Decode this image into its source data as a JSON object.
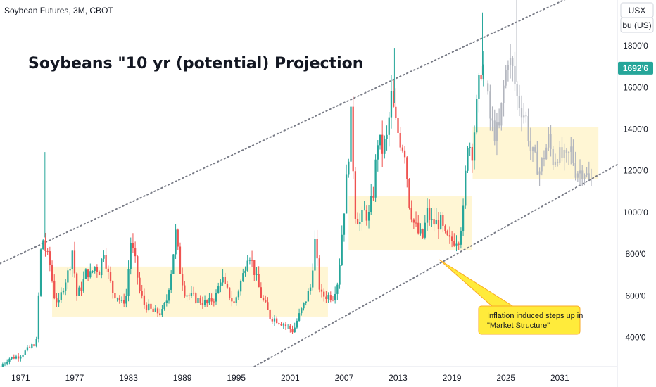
{
  "header": {
    "symbol": "Soybean Futures, 3M, CBOT"
  },
  "price_axis": {
    "currency": "USX",
    "unit": "bu (US)",
    "current_price_label": "1692'6"
  },
  "colors": {
    "up": "#26a69a",
    "down": "#ef5350",
    "projection": "#b2b5be",
    "zone": "#fff5cc",
    "callout_bg": "#ffeb3b",
    "callout_border": "#f9a825",
    "channel": "#787b86",
    "price_tag": "#26a69a"
  },
  "annotation": {
    "text_line1": "Inflation induced steps up in",
    "text_line2": "\"Market Structure\""
  },
  "chart_data": {
    "type": "candlestick",
    "title": "Soybeans \"10 yr (potential) Projection",
    "x_ticks": [
      "1971",
      "1977",
      "1983",
      "1989",
      "1995",
      "2001",
      "2007",
      "2013",
      "2019",
      "2025",
      "2031"
    ],
    "y_ticks": [
      "400'0",
      "600'0",
      "800'0",
      "1000'0",
      "1200'0",
      "1400'0",
      "1600'0",
      "1800'0"
    ],
    "ylim": [
      260,
      2020
    ],
    "xlim": [
      1968.7,
      2037.4
    ],
    "last_price": 1692.75,
    "anchors": [
      [
        1969.0,
        260
      ],
      [
        1970.0,
        300
      ],
      [
        1971.0,
        310
      ],
      [
        1972.0,
        340
      ],
      [
        1973.0,
        380
      ],
      [
        1973.6,
        900
      ],
      [
        1974.0,
        820
      ],
      [
        1974.5,
        750
      ],
      [
        1975.0,
        600
      ],
      [
        1975.5,
        560
      ],
      [
        1976.0,
        650
      ],
      [
        1976.6,
        720
      ],
      [
        1977.0,
        820
      ],
      [
        1977.5,
        600
      ],
      [
        1978.0,
        640
      ],
      [
        1978.6,
        720
      ],
      [
        1979.0,
        700
      ],
      [
        1979.5,
        740
      ],
      [
        1980.0,
        720
      ],
      [
        1980.5,
        820
      ],
      [
        1981.0,
        700
      ],
      [
        1981.5,
        620
      ],
      [
        1982.0,
        600
      ],
      [
        1982.5,
        560
      ],
      [
        1983.0,
        600
      ],
      [
        1983.5,
        860
      ],
      [
        1984.0,
        760
      ],
      [
        1984.5,
        620
      ],
      [
        1985.0,
        560
      ],
      [
        1986.0,
        520
      ],
      [
        1987.0,
        520
      ],
      [
        1987.5,
        580
      ],
      [
        1988.0,
        720
      ],
      [
        1988.5,
        900
      ],
      [
        1989.0,
        720
      ],
      [
        1989.5,
        620
      ],
      [
        1990.0,
        600
      ],
      [
        1991.0,
        580
      ],
      [
        1992.0,
        560
      ],
      [
        1993.0,
        600
      ],
      [
        1993.6,
        700
      ],
      [
        1994.0,
        640
      ],
      [
        1995.0,
        560
      ],
      [
        1996.0,
        700
      ],
      [
        1996.6,
        820
      ],
      [
        1997.0,
        760
      ],
      [
        1997.6,
        660
      ],
      [
        1998.0,
        600
      ],
      [
        1999.0,
        500
      ],
      [
        2000.0,
        480
      ],
      [
        2001.0,
        450
      ],
      [
        2001.6,
        430
      ],
      [
        2002.0,
        480
      ],
      [
        2002.8,
        560
      ],
      [
        2003.5,
        640
      ],
      [
        2004.0,
        860
      ],
      [
        2004.6,
        600
      ],
      [
        2005.0,
        600
      ],
      [
        2006.0,
        600
      ],
      [
        2006.6,
        680
      ],
      [
        2007.0,
        900
      ],
      [
        2007.6,
        1200
      ],
      [
        2008.0,
        1450
      ],
      [
        2008.5,
        1000
      ],
      [
        2009.0,
        950
      ],
      [
        2009.5,
        1000
      ],
      [
        2010.0,
        980
      ],
      [
        2010.5,
        1100
      ],
      [
        2011.0,
        1350
      ],
      [
        2011.5,
        1300
      ],
      [
        2012.0,
        1350
      ],
      [
        2012.5,
        1550
      ],
      [
        2013.0,
        1420
      ],
      [
        2013.5,
        1350
      ],
      [
        2014.0,
        1300
      ],
      [
        2014.5,
        1050
      ],
      [
        2015.0,
        950
      ],
      [
        2015.5,
        900
      ],
      [
        2016.0,
        880
      ],
      [
        2016.5,
        1000
      ],
      [
        2017.0,
        950
      ],
      [
        2018.0,
        950
      ],
      [
        2018.5,
        880
      ],
      [
        2019.0,
        860
      ],
      [
        2020.0,
        880
      ],
      [
        2020.5,
        1000
      ],
      [
        2021.0,
        1350
      ],
      [
        2021.5,
        1300
      ],
      [
        2022.0,
        1500
      ],
      [
        2022.5,
        1700
      ]
    ],
    "projection_anchors": [
      [
        2023.0,
        1620
      ],
      [
        2023.5,
        1450
      ],
      [
        2024.0,
        1380
      ],
      [
        2024.5,
        1400
      ],
      [
        2025.0,
        1600
      ],
      [
        2025.5,
        1750
      ],
      [
        2026.0,
        1680
      ],
      [
        2026.5,
        1550
      ],
      [
        2027.0,
        1500
      ],
      [
        2027.5,
        1450
      ],
      [
        2028.0,
        1300
      ],
      [
        2028.5,
        1250
      ],
      [
        2029.0,
        1200
      ],
      [
        2030.0,
        1350
      ],
      [
        2030.5,
        1250
      ],
      [
        2031.0,
        1280
      ],
      [
        2032.0,
        1250
      ],
      [
        2032.5,
        1300
      ],
      [
        2033.0,
        1200
      ],
      [
        2034.0,
        1200
      ],
      [
        2034.5,
        1150
      ]
    ],
    "zones": [
      {
        "x0": 1974.5,
        "x1": 2005.2,
        "y0": 500,
        "y1": 740
      },
      {
        "x0": 2007.5,
        "x1": 2021.2,
        "y0": 820,
        "y1": 1080
      },
      {
        "x0": 2021.3,
        "x1": 2035.3,
        "y0": 1160,
        "y1": 1410
      }
    ],
    "channel": {
      "upper": [
        [
          1968.7,
          755
        ],
        [
          2037.4,
          2140
        ]
      ],
      "lower": [
        [
          1997.0,
          260
        ],
        [
          2037.4,
          1230
        ]
      ]
    }
  }
}
